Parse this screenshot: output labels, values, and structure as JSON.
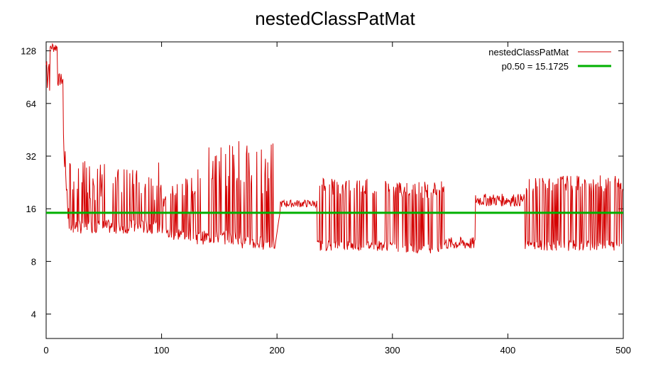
{
  "chart_data": {
    "type": "line",
    "title": "nestedClassPatMat",
    "xlabel": "",
    "ylabel": "",
    "xlim": [
      0,
      500
    ],
    "ylim": [
      2.9,
      144
    ],
    "y_scale": "log2",
    "grid": false,
    "legend_position": "top-right",
    "x_ticks": [
      0,
      100,
      200,
      300,
      400,
      500
    ],
    "x_tick_labels": [
      "0",
      "100",
      "200",
      "300",
      "400",
      "500"
    ],
    "y_ticks": [
      4,
      8,
      16,
      32,
      64,
      128
    ],
    "y_tick_labels": [
      "4",
      "8",
      "16",
      "32",
      "64",
      "128"
    ],
    "series": [
      {
        "name": "nestedClassPatMat",
        "color": "#d40000",
        "segments": [
          {
            "x0": 0,
            "x1": 4,
            "lo": 70,
            "hi": 144,
            "pattern": "noise"
          },
          {
            "x0": 4,
            "x1": 10,
            "lo": 125,
            "hi": 144,
            "pattern": "noise"
          },
          {
            "x0": 10,
            "x1": 15,
            "lo": 80,
            "hi": 95,
            "pattern": "noise"
          },
          {
            "x0": 15,
            "x1": 20,
            "lo": 13,
            "hi": 40,
            "pattern": "decay"
          },
          {
            "x0": 20,
            "x1": 100,
            "lo": 11.5,
            "hi": 30,
            "pattern": "spiky"
          },
          {
            "x0": 100,
            "x1": 130,
            "lo": 10.5,
            "hi": 24,
            "pattern": "spiky"
          },
          {
            "x0": 130,
            "x1": 170,
            "lo": 10,
            "hi": 40,
            "pattern": "spiky"
          },
          {
            "x0": 170,
            "x1": 198,
            "lo": 9.3,
            "hi": 38,
            "pattern": "spiky"
          },
          {
            "x0": 198,
            "x1": 203,
            "lo": 9.5,
            "hi": 16,
            "pattern": "rise"
          },
          {
            "x0": 203,
            "x1": 235,
            "lo": 16.3,
            "hi": 18,
            "pattern": "noise"
          },
          {
            "x0": 235,
            "x1": 300,
            "lo": 9.2,
            "hi": 24,
            "pattern": "square"
          },
          {
            "x0": 300,
            "x1": 345,
            "lo": 8.9,
            "hi": 23,
            "pattern": "square"
          },
          {
            "x0": 345,
            "x1": 372,
            "lo": 9.3,
            "hi": 11,
            "pattern": "noise"
          },
          {
            "x0": 372,
            "x1": 415,
            "lo": 16.5,
            "hi": 19.5,
            "pattern": "noise"
          },
          {
            "x0": 415,
            "x1": 500,
            "lo": 9.2,
            "hi": 25,
            "pattern": "square"
          }
        ]
      },
      {
        "name": "p0.50 = 15.1725",
        "color": "#00b000",
        "value": 15.1725
      }
    ],
    "legend": [
      {
        "label": "nestedClassPatMat",
        "color": "#d40000"
      },
      {
        "label": "p0.50 = 15.1725",
        "color": "#00b000"
      }
    ]
  }
}
